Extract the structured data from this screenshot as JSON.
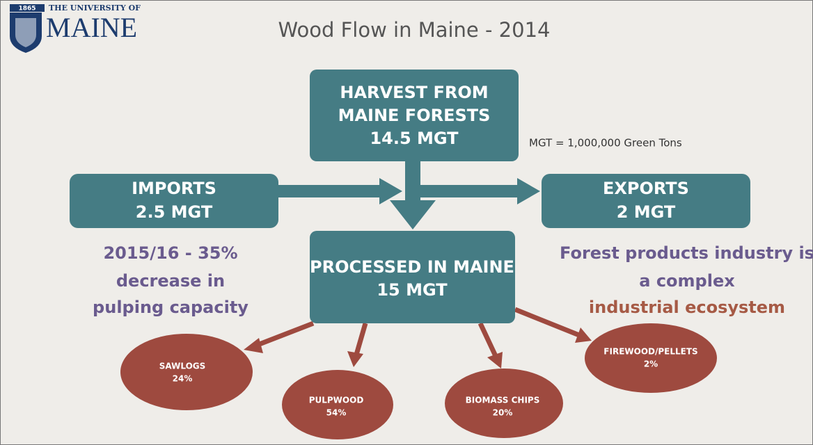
{
  "logo": {
    "year": "1865",
    "line1": "THE UNIVERSITY OF",
    "line2": "MAINE"
  },
  "title": "Wood Flow in Maine - 2014",
  "note": "MGT = 1,000,000 Green Tons",
  "nodes": {
    "harvest": {
      "lines": [
        "HARVEST FROM",
        "MAINE FORESTS",
        "14.5 MGT"
      ]
    },
    "imports": {
      "lines": [
        "IMPORTS",
        "2.5 MGT"
      ]
    },
    "exports": {
      "lines": [
        "EXPORTS",
        "2 MGT"
      ]
    },
    "processed": {
      "lines": [
        "PROCESSED IN MAINE",
        "15 MGT"
      ]
    }
  },
  "left_text": [
    "2015/16 - 35%",
    "decrease in",
    "pulping capacity"
  ],
  "right_text": [
    "Forest products industry is",
    "a complex",
    "industrial ecosystem"
  ],
  "outputs": [
    {
      "label": "SAWLOGS",
      "share": "24%"
    },
    {
      "label": "PULPWOOD",
      "share": "54%"
    },
    {
      "label": "BIOMASS CHIPS",
      "share": "20%"
    },
    {
      "label": "FIREWOOD/PELLETS",
      "share": "2%"
    }
  ]
}
